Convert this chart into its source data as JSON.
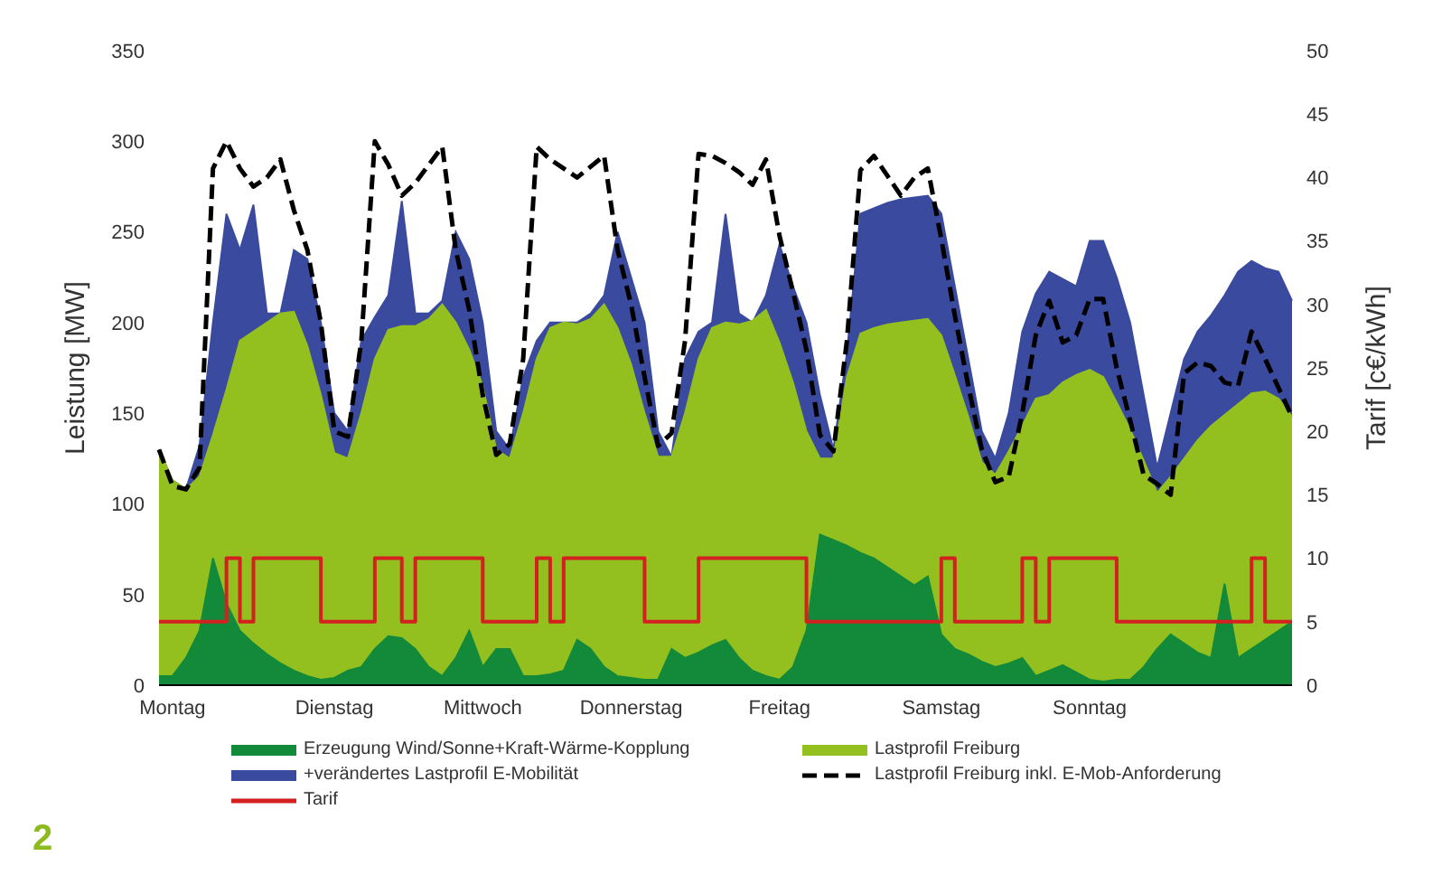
{
  "chart_data": {
    "type": "area",
    "ylabel": "Leistung [MW]",
    "y2label": "Tarif [c€/kWh]",
    "categories": [
      null,
      "Montag",
      null,
      null,
      null,
      null,
      null,
      null,
      null,
      null,
      null,
      null,
      null,
      "Dienstag",
      null,
      null,
      null,
      null,
      null,
      null,
      null,
      null,
      null,
      null,
      "Mittwoch",
      null,
      null,
      null,
      null,
      null,
      null,
      null,
      null,
      null,
      null,
      "Donnerstag",
      null,
      null,
      null,
      null,
      null,
      null,
      null,
      null,
      null,
      null,
      "Freitag",
      null,
      null,
      null,
      null,
      null,
      null,
      null,
      null,
      null,
      null,
      null,
      "Samstag",
      null,
      null,
      null,
      null,
      null,
      null,
      null,
      null,
      null,
      null,
      "Sonntag",
      null,
      null,
      null,
      null,
      null,
      null,
      null,
      null,
      null,
      null,
      null,
      null,
      null,
      null,
      null
    ],
    "ylim": [
      0,
      350
    ],
    "yticks": [
      0,
      50,
      100,
      150,
      200,
      250,
      300,
      350
    ],
    "y2lim": [
      0,
      50
    ],
    "y2ticks": [
      0,
      5,
      10,
      15,
      20,
      25,
      30,
      35,
      40,
      45,
      50
    ],
    "legend": "bottom",
    "annotations": [
      "2"
    ],
    "series": [
      {
        "name": "Erzeugung Wind/Sonne+Kraft-Wärme-Kopplung",
        "color": "#138a3a",
        "values": [
          5,
          5,
          15,
          30,
          70,
          45,
          30,
          23,
          17,
          12,
          8,
          5,
          3,
          4,
          8,
          10,
          20,
          27,
          26,
          20,
          10,
          5,
          15,
          30,
          10,
          20,
          20,
          5,
          5,
          6,
          8,
          25,
          20,
          10,
          5,
          4,
          3,
          3,
          20,
          15,
          18,
          22,
          25,
          15,
          8,
          5,
          3,
          10,
          30,
          83,
          80,
          77,
          73,
          70,
          65,
          60,
          55,
          60,
          28,
          20,
          17,
          13,
          10,
          12,
          15,
          5,
          8,
          11,
          7,
          3,
          2,
          3,
          3,
          10,
          20,
          28,
          23,
          18,
          15,
          56,
          15,
          20,
          25,
          30,
          35
        ]
      },
      {
        "name": "Lastprofil Freiburg",
        "color": "#93c01f",
        "values": [
          130,
          113,
          108,
          115,
          138,
          163,
          190,
          195,
          200,
          205,
          206,
          187,
          160,
          128,
          125,
          150,
          180,
          196,
          198,
          198,
          202,
          210,
          200,
          185,
          165,
          130,
          125,
          150,
          180,
          197,
          200,
          199,
          202,
          210,
          197,
          177,
          150,
          126,
          126,
          150,
          180,
          197,
          200,
          199,
          201,
          207,
          189,
          167,
          140,
          125,
          125,
          170,
          194,
          197,
          199,
          200,
          201,
          202,
          193,
          171,
          148,
          123,
          116,
          129,
          143,
          158,
          160,
          167,
          171,
          174,
          170,
          156,
          141,
          124,
          106,
          115,
          125,
          135,
          143,
          149,
          155,
          161,
          162,
          158,
          148
        ]
      },
      {
        "name": "+verändertes Lastprofil E-Mobilität",
        "color": "#3a4a9e",
        "values": [
          130,
          113,
          108,
          132,
          200,
          260,
          240,
          265,
          205,
          205,
          240,
          235,
          200,
          150,
          140,
          190,
          203,
          215,
          267,
          205,
          205,
          212,
          250,
          235,
          200,
          140,
          130,
          170,
          190,
          200,
          200,
          200,
          205,
          215,
          250,
          225,
          200,
          140,
          126,
          180,
          195,
          200,
          260,
          205,
          200,
          215,
          243,
          220,
          200,
          160,
          130,
          183,
          260,
          263,
          266,
          268,
          269,
          270,
          260,
          220,
          180,
          140,
          125,
          150,
          195,
          216,
          228,
          224,
          220,
          245,
          245,
          225,
          200,
          160,
          120,
          150,
          180,
          195,
          204,
          215,
          228,
          234,
          230,
          228,
          212
        ]
      },
      {
        "name": "Lastprofil Freiburg inkl. E-Mob-Anforderung",
        "type": "line",
        "color": "#000000",
        "line_style": "dashed",
        "values": [
          130,
          110,
          108,
          120,
          285,
          300,
          285,
          275,
          280,
          290,
          262,
          240,
          200,
          140,
          137,
          190,
          300,
          287,
          270,
          277,
          287,
          297,
          240,
          207,
          160,
          127,
          133,
          180,
          297,
          290,
          285,
          280,
          286,
          292,
          240,
          210,
          170,
          132,
          139,
          190,
          293,
          292,
          288,
          283,
          276,
          290,
          248,
          217,
          185,
          138,
          129,
          190,
          284,
          292,
          281,
          270,
          280,
          285,
          246,
          204,
          165,
          130,
          112,
          115,
          150,
          193,
          212,
          189,
          193,
          213,
          213,
          175,
          146,
          116,
          111,
          105,
          172,
          178,
          176,
          167,
          165,
          195,
          180,
          164,
          148
        ]
      },
      {
        "name": "Tarif",
        "type": "step",
        "axis": "y2",
        "color": "#d42020",
        "values": [
          5,
          5,
          5,
          5,
          5,
          10,
          5,
          10,
          10,
          10,
          10,
          10,
          5,
          5,
          5,
          5,
          10,
          10,
          5,
          10,
          10,
          10,
          10,
          10,
          5,
          5,
          5,
          5,
          10,
          5,
          10,
          10,
          10,
          10,
          10,
          10,
          5,
          5,
          5,
          5,
          10,
          10,
          10,
          10,
          10,
          10,
          10,
          10,
          5,
          5,
          5,
          5,
          5,
          5,
          5,
          5,
          5,
          5,
          10,
          5,
          5,
          5,
          5,
          5,
          10,
          5,
          10,
          10,
          10,
          10,
          10,
          5,
          5,
          5,
          5,
          5,
          5,
          5,
          5,
          5,
          5,
          10,
          5,
          5,
          5
        ]
      }
    ]
  }
}
